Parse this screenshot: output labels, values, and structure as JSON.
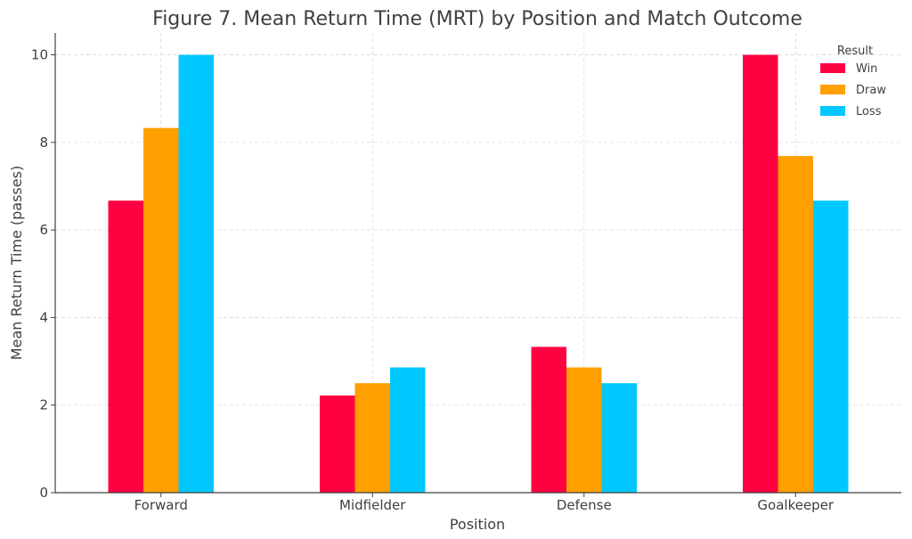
{
  "chart_data": {
    "type": "bar",
    "title": "Figure 7. Mean Return Time (MRT) by Position and Match Outcome",
    "xlabel": "Position",
    "ylabel": "Mean Return Time (passes)",
    "categories": [
      "Forward",
      "Midfielder",
      "Defense",
      "Goalkeeper"
    ],
    "ylim": [
      0,
      10.5
    ],
    "yticks": [
      0,
      2,
      4,
      6,
      8,
      10
    ],
    "grid": true,
    "legend": {
      "title": "Result",
      "placement": "top-right"
    },
    "series": [
      {
        "name": "Win",
        "color": "#ff0040",
        "values": [
          6.67,
          2.22,
          3.33,
          10.0
        ]
      },
      {
        "name": "Draw",
        "color": "#ff9f00",
        "values": [
          8.33,
          2.5,
          2.86,
          7.69
        ]
      },
      {
        "name": "Loss",
        "color": "#00c8ff",
        "values": [
          10.0,
          2.86,
          2.5,
          6.67
        ]
      }
    ]
  }
}
